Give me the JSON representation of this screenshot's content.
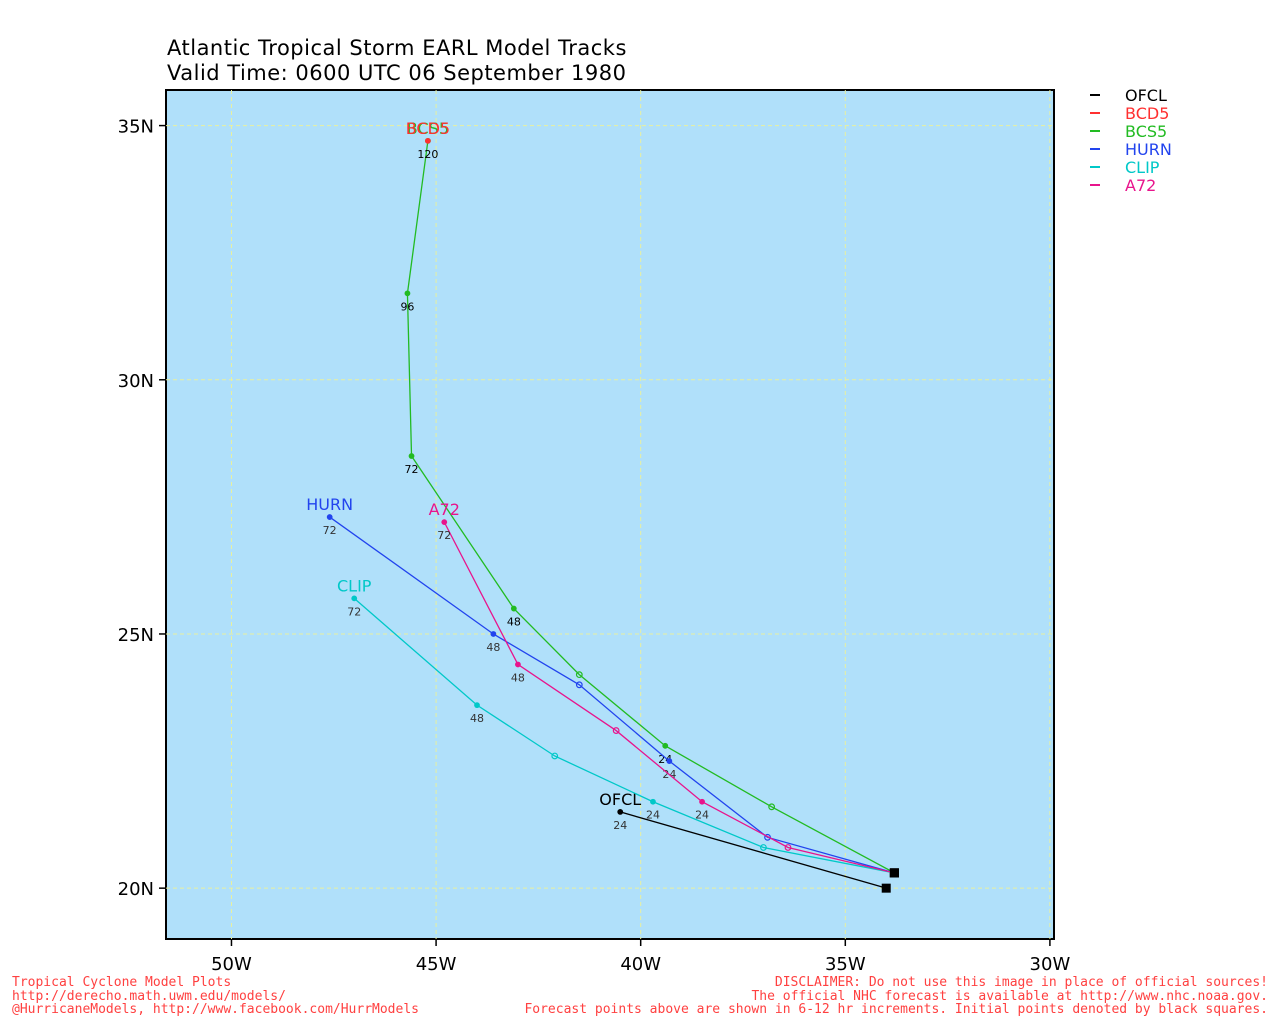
{
  "title": {
    "line1": "Atlantic Tropical Storm EARL Model Tracks",
    "line2": "Valid Time: 0600 UTC 06 September 1980"
  },
  "map": {
    "lon_range": [
      -51.6,
      -29.9
    ],
    "lat_range": [
      19.0,
      35.7
    ],
    "background": "#b0e0fa",
    "grid_color": "#e8f0a0",
    "lon_ticks": [
      -50,
      -45,
      -40,
      -35,
      -30
    ],
    "lon_tick_labels": [
      "50W",
      "45W",
      "40W",
      "35W",
      "30W"
    ],
    "lat_ticks": [
      20,
      25,
      30,
      35
    ],
    "lat_tick_labels": [
      "20N",
      "25N",
      "30N",
      "35N"
    ]
  },
  "legend": [
    {
      "name": "OFCL",
      "color": "#000000"
    },
    {
      "name": "BCD5",
      "color": "#ff3030"
    },
    {
      "name": "BCS5",
      "color": "#22bb22"
    },
    {
      "name": "HURN",
      "color": "#2244ee"
    },
    {
      "name": "CLIP",
      "color": "#00c8c8"
    },
    {
      "name": "A72",
      "color": "#e8148c"
    }
  ],
  "tracks": [
    {
      "name": "OFCL",
      "color": "#000000",
      "label_color": "#000000",
      "init": [
        -34.0,
        20.0
      ],
      "points": [
        {
          "lon": -34.0,
          "lat": 20.0
        },
        {
          "lon": -40.5,
          "lat": 21.5,
          "hour": "24"
        }
      ],
      "end_label": "OFCL"
    },
    {
      "name": "BCS5",
      "color": "#22bb22",
      "label_color": "#22bb22",
      "init": [
        -33.8,
        20.3
      ],
      "points": [
        {
          "lon": -33.8,
          "lat": 20.3
        },
        {
          "lon": -36.8,
          "lat": 21.6
        },
        {
          "lon": -39.4,
          "lat": 22.8,
          "hour": "24"
        },
        {
          "lon": -41.5,
          "lat": 24.2
        },
        {
          "lon": -43.1,
          "lat": 25.5,
          "hour": "48"
        },
        {
          "lon": -45.6,
          "lat": 28.5,
          "hour": "72"
        },
        {
          "lon": -45.7,
          "lat": 31.7,
          "hour": "96"
        },
        {
          "lon": -45.2,
          "lat": 34.7,
          "hour": "120"
        }
      ],
      "end_label": "BCS5"
    },
    {
      "name": "BCD5",
      "color": "#ff3030",
      "label_color": "#ff3030",
      "init": [
        -33.8,
        20.3
      ],
      "points": [
        {
          "lon": -45.2,
          "lat": 34.7
        }
      ],
      "end_label": "BCD5"
    },
    {
      "name": "HURN",
      "color": "#2244ee",
      "label_color": "#2244ee",
      "init": [
        -33.8,
        20.3
      ],
      "points": [
        {
          "lon": -33.8,
          "lat": 20.3
        },
        {
          "lon": -36.9,
          "lat": 21.0
        },
        {
          "lon": -39.3,
          "lat": 22.5,
          "hour": "24"
        },
        {
          "lon": -41.5,
          "lat": 24.0
        },
        {
          "lon": -43.6,
          "lat": 25.0,
          "hour": "48"
        },
        {
          "lon": -47.6,
          "lat": 27.3,
          "hour": "72"
        }
      ],
      "end_label": "HURN"
    },
    {
      "name": "CLIP",
      "color": "#00c8c8",
      "label_color": "#00c8c8",
      "init": [
        -33.8,
        20.3
      ],
      "points": [
        {
          "lon": -33.8,
          "lat": 20.3
        },
        {
          "lon": -37.0,
          "lat": 20.8
        },
        {
          "lon": -39.7,
          "lat": 21.7,
          "hour": "24"
        },
        {
          "lon": -42.1,
          "lat": 22.6
        },
        {
          "lon": -44.0,
          "lat": 23.6,
          "hour": "48"
        },
        {
          "lon": -47.0,
          "lat": 25.7,
          "hour": "72"
        }
      ],
      "end_label": "CLIP"
    },
    {
      "name": "A72",
      "color": "#e8148c",
      "label_color": "#e8148c",
      "init": [
        -33.8,
        20.3
      ],
      "points": [
        {
          "lon": -33.8,
          "lat": 20.3
        },
        {
          "lon": -36.4,
          "lat": 20.8
        },
        {
          "lon": -38.5,
          "lat": 21.7,
          "hour": "24"
        },
        {
          "lon": -40.6,
          "lat": 23.1
        },
        {
          "lon": -43.0,
          "lat": 24.4,
          "hour": "48"
        },
        {
          "lon": -44.8,
          "lat": 27.2,
          "hour": "72"
        }
      ],
      "end_label": "A72"
    }
  ],
  "footer": {
    "left": [
      "Tropical Cyclone Model Plots",
      "http://derecho.math.uwm.edu/models/",
      "@HurricaneModels, http://www.facebook.com/HurrModels"
    ],
    "right": [
      "DISCLAIMER: Do not use this image in place of official sources!",
      "The official NHC forecast is available at http://www.nhc.noaa.gov.",
      "Forecast points above are shown in 6-12 hr increments. Initial points denoted by black squares."
    ]
  }
}
